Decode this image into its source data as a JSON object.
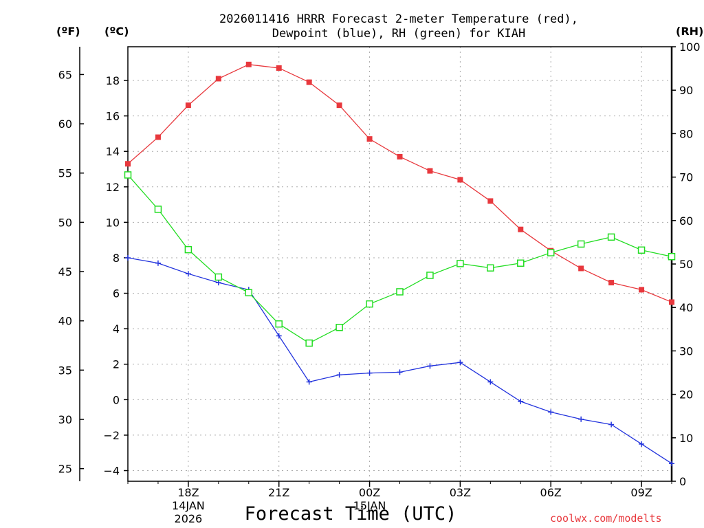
{
  "header": {
    "title_line1": "2026011416 HRRR Forecast 2-meter Temperature (red),",
    "title_line2": "Dewpoint (blue), RH (green) for KIAH",
    "unit_f": "(ºF)",
    "unit_c": "(ºC)",
    "unit_rh": "(RH)"
  },
  "footer": {
    "xlabel": "Forecast Time (UTC)",
    "credit": "coolwx.com/modelts"
  },
  "chart_data": {
    "type": "line",
    "title": "2026011416 HRRR Forecast 2-meter Temperature (red), Dewpoint (blue), RH (green) for KIAH",
    "xlabel": "Forecast Time (UTC)",
    "x": [
      16,
      17,
      18,
      19,
      20,
      21,
      22,
      23,
      24,
      25,
      26,
      27,
      28,
      29,
      30,
      31,
      32,
      33,
      34
    ],
    "xlim": [
      16,
      34
    ],
    "x_ticks": [
      {
        "x": 18,
        "label": "18Z",
        "sub1": "14JAN",
        "sub2": "2026"
      },
      {
        "x": 21,
        "label": "21Z",
        "sub1": "",
        "sub2": ""
      },
      {
        "x": 24,
        "label": "00Z",
        "sub1": "15JAN",
        "sub2": ""
      },
      {
        "x": 27,
        "label": "03Z",
        "sub1": "",
        "sub2": ""
      },
      {
        "x": 30,
        "label": "06Z",
        "sub1": "",
        "sub2": ""
      },
      {
        "x": 33,
        "label": "09Z",
        "sub1": "",
        "sub2": ""
      }
    ],
    "left_c_axis": {
      "label": "(ºC)",
      "ylim": [
        -4.6,
        19.9
      ],
      "ticks": [
        -4,
        -2,
        0,
        2,
        4,
        6,
        8,
        10,
        12,
        14,
        16,
        18
      ]
    },
    "left_f_axis": {
      "label": "(ºF)",
      "ticks": [
        25,
        30,
        35,
        40,
        45,
        50,
        55,
        60,
        65
      ]
    },
    "right_rh_axis": {
      "label": "(RH)",
      "ylim": [
        0,
        100
      ],
      "ticks": [
        0,
        10,
        20,
        30,
        40,
        50,
        60,
        70,
        80,
        90,
        100
      ]
    },
    "grid": true,
    "series": [
      {
        "name": "Temperature",
        "axis": "C",
        "color": "#e8383d",
        "marker": "filled-square",
        "values": [
          13.3,
          14.8,
          16.6,
          18.1,
          18.9,
          18.7,
          17.9,
          16.6,
          14.7,
          13.7,
          12.9,
          12.4,
          11.2,
          9.6,
          8.4,
          7.4,
          6.6,
          6.2,
          5.5
        ]
      },
      {
        "name": "Dewpoint",
        "axis": "C",
        "color": "#2233dd",
        "marker": "plus",
        "values": [
          8.0,
          7.7,
          7.1,
          6.6,
          6.2,
          3.6,
          1.0,
          1.4,
          1.5,
          1.55,
          1.9,
          2.1,
          1.0,
          -0.1,
          -0.7,
          -1.1,
          -1.4,
          -2.5,
          -3.6
        ]
      },
      {
        "name": "Relative Humidity",
        "axis": "RH",
        "color": "#22dd22",
        "marker": "open-square",
        "values": [
          70.5,
          62.6,
          53.3,
          47.0,
          43.4,
          36.2,
          31.8,
          35.4,
          40.8,
          43.6,
          47.4,
          50.1,
          49.1,
          50.2,
          52.6,
          54.6,
          56.2,
          53.2,
          51.7
        ]
      }
    ]
  }
}
